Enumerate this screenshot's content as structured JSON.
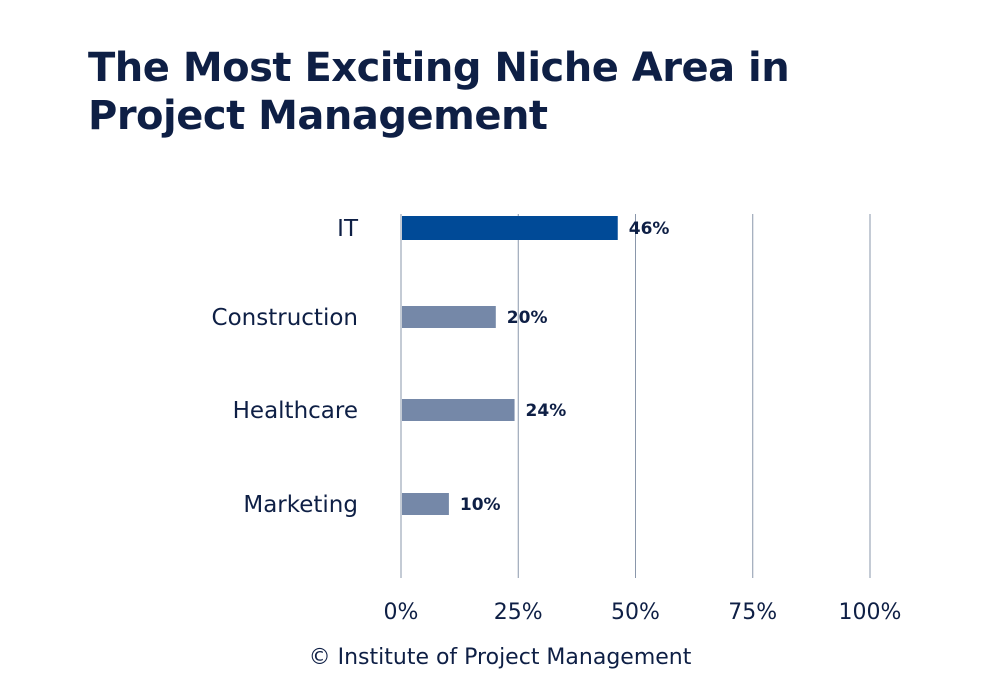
{
  "chart_data": {
    "type": "bar",
    "orientation": "horizontal",
    "title": "The Most Exciting Niche Area in Project Management",
    "categories": [
      "IT",
      "Construction",
      "Healthcare",
      "Marketing"
    ],
    "values": [
      46,
      20,
      24,
      10
    ],
    "value_labels": [
      "46%",
      "20%",
      "24%",
      "10%"
    ],
    "xlim": [
      0,
      100
    ],
    "xticks": [
      0,
      25,
      50,
      75,
      100
    ],
    "xtick_labels": [
      "0%",
      "25%",
      "50%",
      "75%",
      "100%"
    ],
    "grid": true,
    "colors": {
      "highlight": "#004a97",
      "default": "#7588a8",
      "grid": "#8a97ab",
      "text": "#0e1f45"
    },
    "highlight_index": 0
  },
  "footer": {
    "credit": "© Institute of Project Management"
  }
}
